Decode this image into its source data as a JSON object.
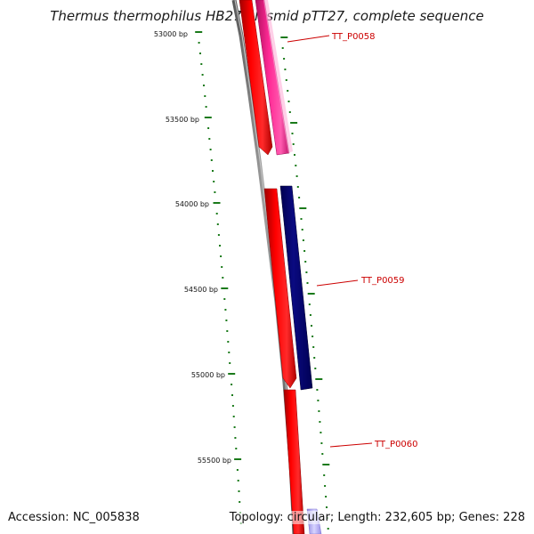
{
  "title": "Thermus thermophilus HB27 plasmid pTT27, complete sequence",
  "footer": {
    "accession": "Accession: NC_005838",
    "summary": "Topology: circular; Length: 232,605 bp; Genes: 228"
  },
  "ruler": {
    "unit": "bp",
    "major_labels": [
      "53000 bp",
      "53500 bp",
      "54000 bp",
      "54500 bp",
      "55000 bp",
      "55500 bp"
    ]
  },
  "genes": [
    {
      "id": "TT_P0058",
      "label": "TT_P0058",
      "strand": "reverse",
      "color": "#ff1f8f"
    },
    {
      "id": "TT_P0059",
      "label": "TT_P0059",
      "strand": "reverse",
      "color": "#0a0a78"
    },
    {
      "id": "TT_P0060",
      "label": "TT_P0060",
      "strand": "reverse",
      "color": "#d0ccff"
    }
  ],
  "colors": {
    "backbone": "#808080",
    "cds_forward": "#ff0000",
    "ticks": "#1a7a1a",
    "labels": "#cc0000"
  }
}
